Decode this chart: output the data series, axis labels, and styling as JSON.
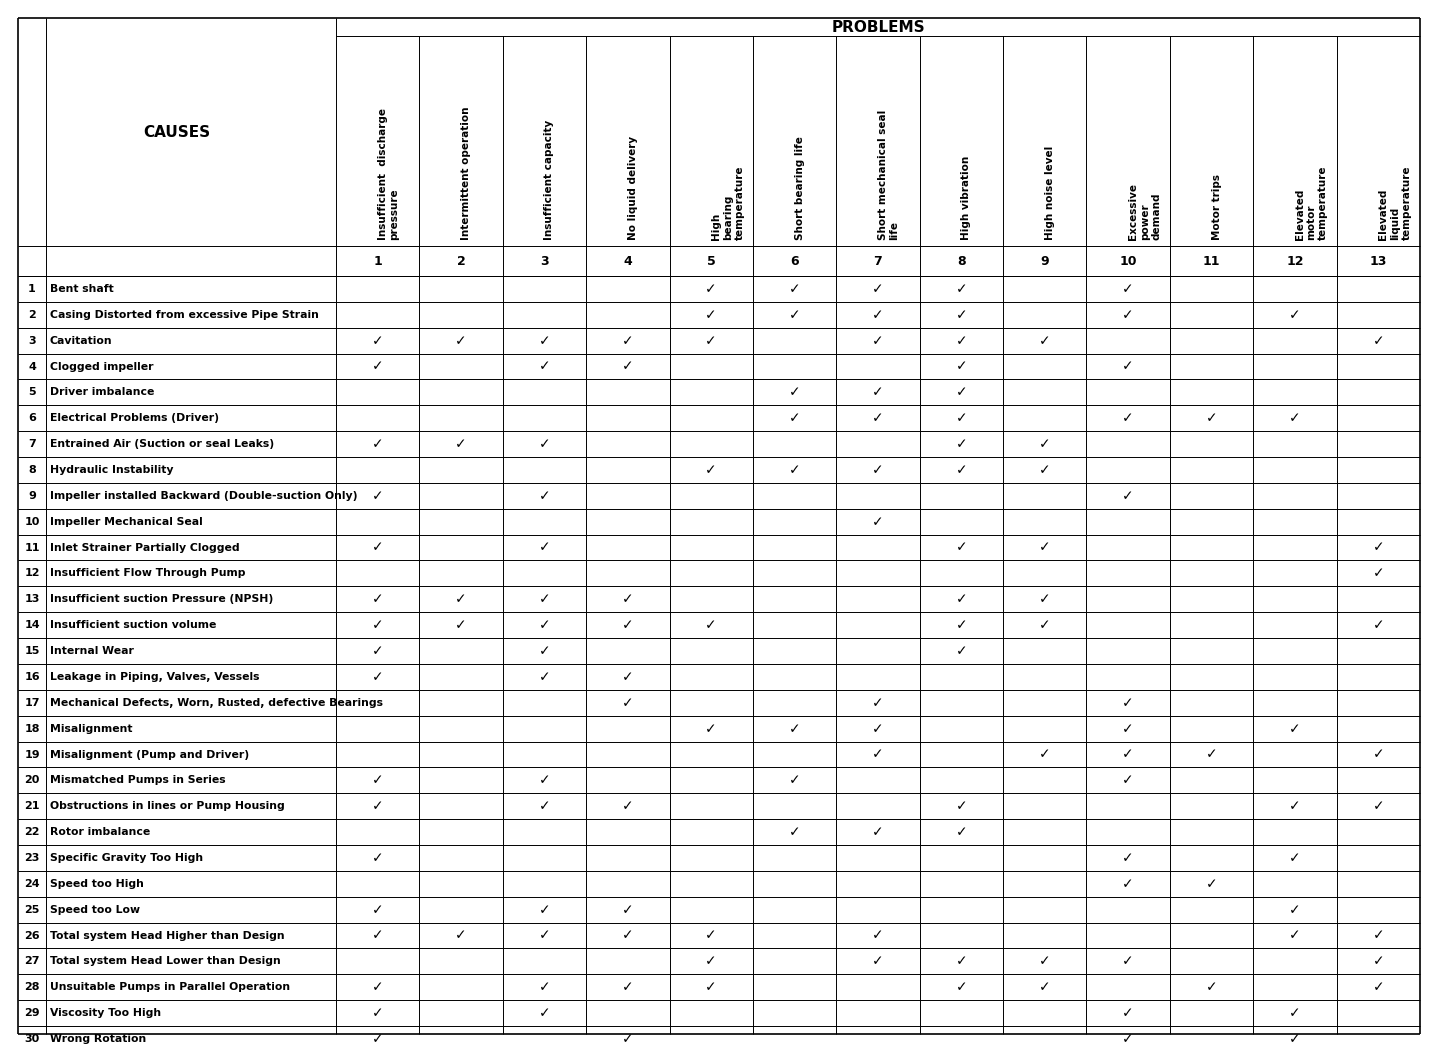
{
  "title": "PROBLEMS",
  "causes_header": "CAUSES",
  "problems": [
    "Insufficient  discharge\npressure",
    "Intermittent operation",
    "Insufficient capacity",
    "No liquid delivery",
    "High\nbearing\ntemperature",
    "Short bearing life",
    "Short mechanical seal\nlife",
    "High vibration",
    "High noise level",
    "Excessive\npower\ndemand",
    "Motor trips",
    "Elevated\nmotor\ntemperature",
    "Elevated\nliquid\ntemperature"
  ],
  "problem_numbers": [
    "1",
    "2",
    "3",
    "4",
    "5",
    "6",
    "7",
    "8",
    "9",
    "10",
    "11",
    "12",
    "13"
  ],
  "causes": [
    "Bent shaft",
    "Casing Distorted from excessive Pipe Strain",
    "Cavitation",
    "Clogged impeller",
    "Driver imbalance",
    "Electrical Problems (Driver)",
    "Entrained Air (Suction or seal Leaks)",
    "Hydraulic Instability",
    "Impeller installed Backward (Double-suction Only)",
    "Impeller Mechanical Seal",
    "Inlet Strainer Partially Clogged",
    "Insufficient Flow Through Pump",
    "Insufficient suction Pressure (NPSH)",
    "Insufficient suction volume",
    "Internal Wear",
    "Leakage in Piping, Valves, Vessels",
    "Mechanical Defects, Worn, Rusted, defective Bearings",
    "Misalignment",
    "Misalignment (Pump and Driver)",
    "Mismatched Pumps in Series",
    "Obstructions in lines or Pump Housing",
    "Rotor imbalance",
    "Specific Gravity Too High",
    "Speed too High",
    "Speed too Low",
    "Total system Head Higher than Design",
    "Total system Head Lower than Design",
    "Unsuitable Pumps in Parallel Operation",
    "Viscosity Too High",
    "Wrong Rotation"
  ],
  "checkmarks": {
    "1": [
      5,
      6,
      7,
      8,
      10
    ],
    "2": [
      5,
      6,
      7,
      8,
      10,
      12
    ],
    "3": [
      1,
      2,
      3,
      4,
      5,
      7,
      8,
      9,
      13
    ],
    "4": [
      1,
      3,
      4,
      8,
      10
    ],
    "5": [
      6,
      7,
      8
    ],
    "6": [
      6,
      7,
      8,
      10,
      11,
      12
    ],
    "7": [
      1,
      2,
      3,
      8,
      9
    ],
    "8": [
      5,
      6,
      7,
      8,
      9
    ],
    "9": [
      1,
      3,
      10
    ],
    "10": [
      7
    ],
    "11": [
      1,
      3,
      8,
      9,
      13
    ],
    "12": [
      13
    ],
    "13": [
      1,
      2,
      3,
      4,
      8,
      9
    ],
    "14": [
      1,
      2,
      3,
      4,
      5,
      8,
      9,
      13
    ],
    "15": [
      1,
      3,
      8
    ],
    "16": [
      1,
      3,
      4
    ],
    "17": [
      4,
      7,
      10
    ],
    "18": [
      5,
      6,
      7,
      10,
      12
    ],
    "19": [
      7,
      9,
      10,
      11,
      13
    ],
    "20": [
      1,
      3,
      6,
      10
    ],
    "21": [
      1,
      3,
      4,
      8,
      12,
      13
    ],
    "22": [
      6,
      7,
      8
    ],
    "23": [
      1,
      10,
      12
    ],
    "24": [
      10,
      11
    ],
    "25": [
      1,
      3,
      4,
      12
    ],
    "26": [
      1,
      2,
      3,
      4,
      5,
      7,
      12,
      13
    ],
    "27": [
      5,
      7,
      8,
      9,
      10,
      13
    ],
    "28": [
      1,
      3,
      4,
      5,
      8,
      9,
      11,
      13
    ],
    "29": [
      1,
      3,
      10,
      12
    ],
    "30": [
      1,
      4,
      10,
      12
    ]
  },
  "figwidth": 14.18,
  "figheight": 10.32,
  "dpi": 100
}
